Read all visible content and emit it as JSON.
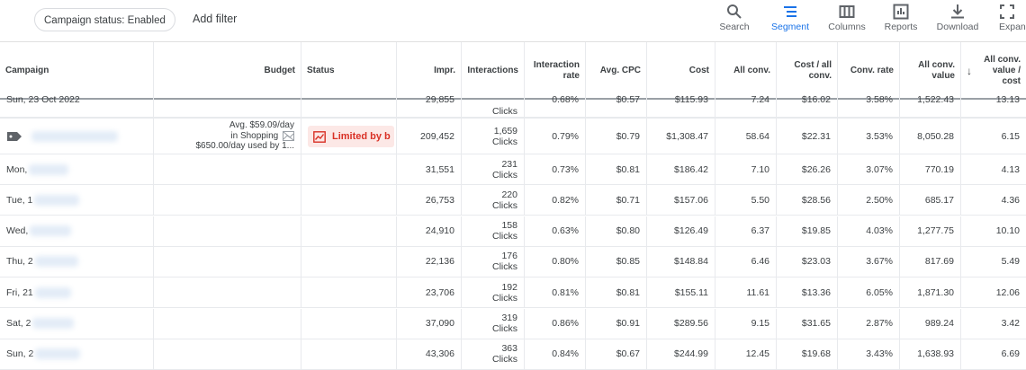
{
  "filters": {
    "chip_label": "Campaign status: Enabled",
    "add_filter": "Add filter"
  },
  "toolbar": [
    {
      "label": "Search",
      "icon": "search-icon"
    },
    {
      "label": "Segment",
      "icon": "segment-icon",
      "active": true
    },
    {
      "label": "Columns",
      "icon": "columns-icon"
    },
    {
      "label": "Reports",
      "icon": "reports-icon"
    },
    {
      "label": "Download",
      "icon": "download-icon"
    },
    {
      "label": "Expand",
      "icon": "expand-icon"
    }
  ],
  "columns": {
    "campaign": "Campaign",
    "budget": "Budget",
    "status": "Status",
    "impr": "Impr.",
    "interactions": "Interactions",
    "interaction_rate": "Interaction rate",
    "avg_cpc": "Avg. CPC",
    "cost": "Cost",
    "all_conv": "All conv.",
    "cost_all_conv": "Cost / all conv.",
    "conv_rate": "Conv. rate",
    "all_conv_value": "All conv. value",
    "value_cost": "All conv. value / cost"
  },
  "partial_row": {
    "date": "Sun, 23 Oct 2022",
    "impr": "29,855",
    "interactions_unit": "Clicks",
    "rate": "0.68%",
    "cpc": "$0.57",
    "cost": "$115.93",
    "all_conv": "7.24",
    "cost_conv": "$16.02",
    "conv_rate": "3.58%",
    "value": "1,522.43",
    "value_cost": "13.13"
  },
  "campaign_row": {
    "budget_line1": "Avg. $59.09/day",
    "budget_line2": "in Shopping",
    "budget_line3": "$650.00/day used by 1...",
    "status": "Limited by b",
    "impr": "209,452",
    "interactions": "1,659",
    "interactions_unit": "Clicks",
    "rate": "0.79%",
    "cpc": "$0.79",
    "cost": "$1,308.47",
    "all_conv": "58.64",
    "cost_conv": "$22.31",
    "conv_rate": "3.53%",
    "value": "8,050.28",
    "value_cost": "6.15"
  },
  "rows": [
    {
      "date": "Mon,",
      "impr": "31,551",
      "interactions": "231",
      "unit": "Clicks",
      "rate": "0.73%",
      "cpc": "$0.81",
      "cost": "$186.42",
      "all_conv": "7.10",
      "cost_conv": "$26.26",
      "conv_rate": "3.07%",
      "value": "770.19",
      "value_cost": "4.13"
    },
    {
      "date": "Tue, 1",
      "impr": "26,753",
      "interactions": "220",
      "unit": "Clicks",
      "rate": "0.82%",
      "cpc": "$0.71",
      "cost": "$157.06",
      "all_conv": "5.50",
      "cost_conv": "$28.56",
      "conv_rate": "2.50%",
      "value": "685.17",
      "value_cost": "4.36"
    },
    {
      "date": "Wed,",
      "impr": "24,910",
      "interactions": "158",
      "unit": "Clicks",
      "rate": "0.63%",
      "cpc": "$0.80",
      "cost": "$126.49",
      "all_conv": "6.37",
      "cost_conv": "$19.85",
      "conv_rate": "4.03%",
      "value": "1,277.75",
      "value_cost": "10.10"
    },
    {
      "date": "Thu, 2",
      "impr": "22,136",
      "interactions": "176",
      "unit": "Clicks",
      "rate": "0.80%",
      "cpc": "$0.85",
      "cost": "$148.84",
      "all_conv": "6.46",
      "cost_conv": "$23.03",
      "conv_rate": "3.67%",
      "value": "817.69",
      "value_cost": "5.49"
    },
    {
      "date": "Fri, 21",
      "impr": "23,706",
      "interactions": "192",
      "unit": "Clicks",
      "rate": "0.81%",
      "cpc": "$0.81",
      "cost": "$155.11",
      "all_conv": "11.61",
      "cost_conv": "$13.36",
      "conv_rate": "6.05%",
      "value": "1,871.30",
      "value_cost": "12.06"
    },
    {
      "date": "Sat, 2",
      "impr": "37,090",
      "interactions": "319",
      "unit": "Clicks",
      "rate": "0.86%",
      "cpc": "$0.91",
      "cost": "$289.56",
      "all_conv": "9.15",
      "cost_conv": "$31.65",
      "conv_rate": "2.87%",
      "value": "989.24",
      "value_cost": "3.42"
    },
    {
      "date": "Sun, 2",
      "impr": "43,306",
      "interactions": "363",
      "unit": "Clicks",
      "rate": "0.84%",
      "cpc": "$0.67",
      "cost": "$244.99",
      "all_conv": "12.45",
      "cost_conv": "$19.68",
      "conv_rate": "3.43%",
      "value": "1,638.93",
      "value_cost": "6.69"
    }
  ]
}
